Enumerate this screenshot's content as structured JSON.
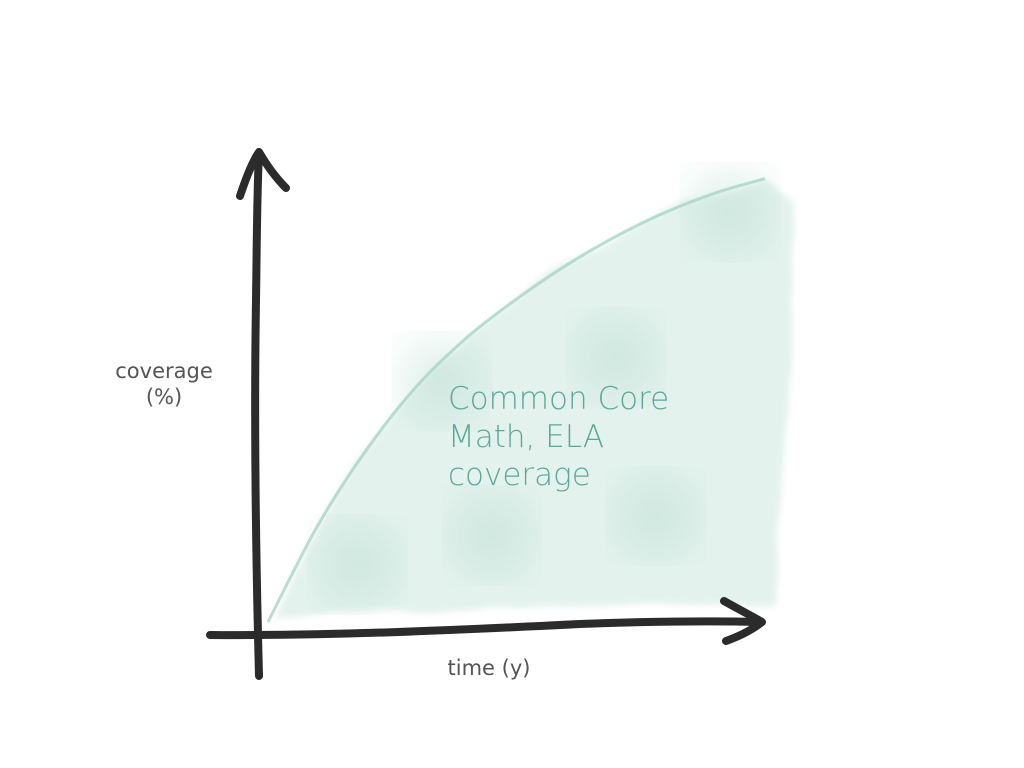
{
  "chart_data": {
    "type": "area",
    "title": "",
    "xlabel": "time (y)",
    "ylabel_lines": [
      "coverage",
      "(%)"
    ],
    "annotation_lines": [
      "Common Core",
      "Math, ELA",
      "coverage"
    ],
    "x": [
      0,
      1,
      2,
      3,
      4,
      5,
      6,
      7,
      8,
      9,
      10
    ],
    "values": [
      0,
      20,
      36,
      49,
      59,
      67,
      74,
      80,
      85,
      89,
      92
    ],
    "ylim": [
      0,
      100
    ],
    "xlim": [
      0,
      10
    ],
    "grid": false,
    "colors": {
      "axis": "#2b2b2b",
      "fill": "#cfe8df",
      "fill_edge": "#a8d5c6",
      "annotation": "#5aa898",
      "label": "#555555"
    }
  }
}
